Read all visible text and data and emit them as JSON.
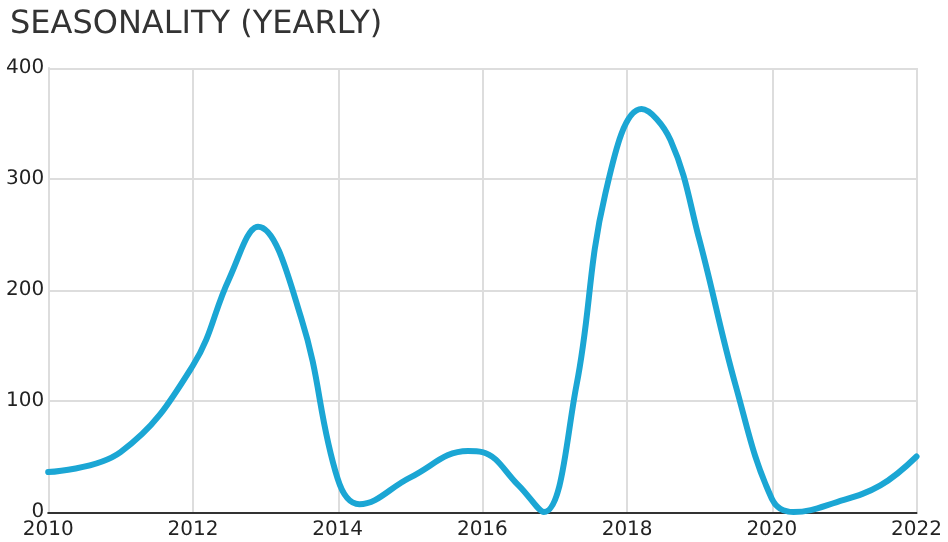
{
  "chart_data": {
    "type": "line",
    "title": "SEASONALITY (YEARLY)",
    "x": [
      2010,
      2011,
      2012,
      2012.5,
      2012.9,
      2013.5,
      2014,
      2014.3,
      2015,
      2015.8,
      2016,
      2016.5,
      2016.85,
      2017.3,
      2017.7,
      2018.2,
      2018.6,
      2019,
      2019.5,
      2020,
      2020.3,
      2020.9,
      2021.5,
      2022
    ],
    "series": [
      {
        "color": "#1ba6d4",
        "values": [
          36,
          54,
          132,
          210,
          257,
          174,
          30,
          7,
          31,
          55,
          54,
          24,
          0,
          114,
          287,
          363,
          335,
          245,
          114,
          12,
          0,
          9,
          24,
          50
        ]
      }
    ],
    "xlim": [
      2010,
      2022
    ],
    "xticks": [
      2010,
      2012,
      2014,
      2016,
      2018,
      2020,
      2022
    ],
    "ylim": [
      0,
      400
    ],
    "yticks": [
      0,
      100,
      200,
      300,
      400
    ],
    "grid": true,
    "marker": "none",
    "line_style": "solid"
  }
}
